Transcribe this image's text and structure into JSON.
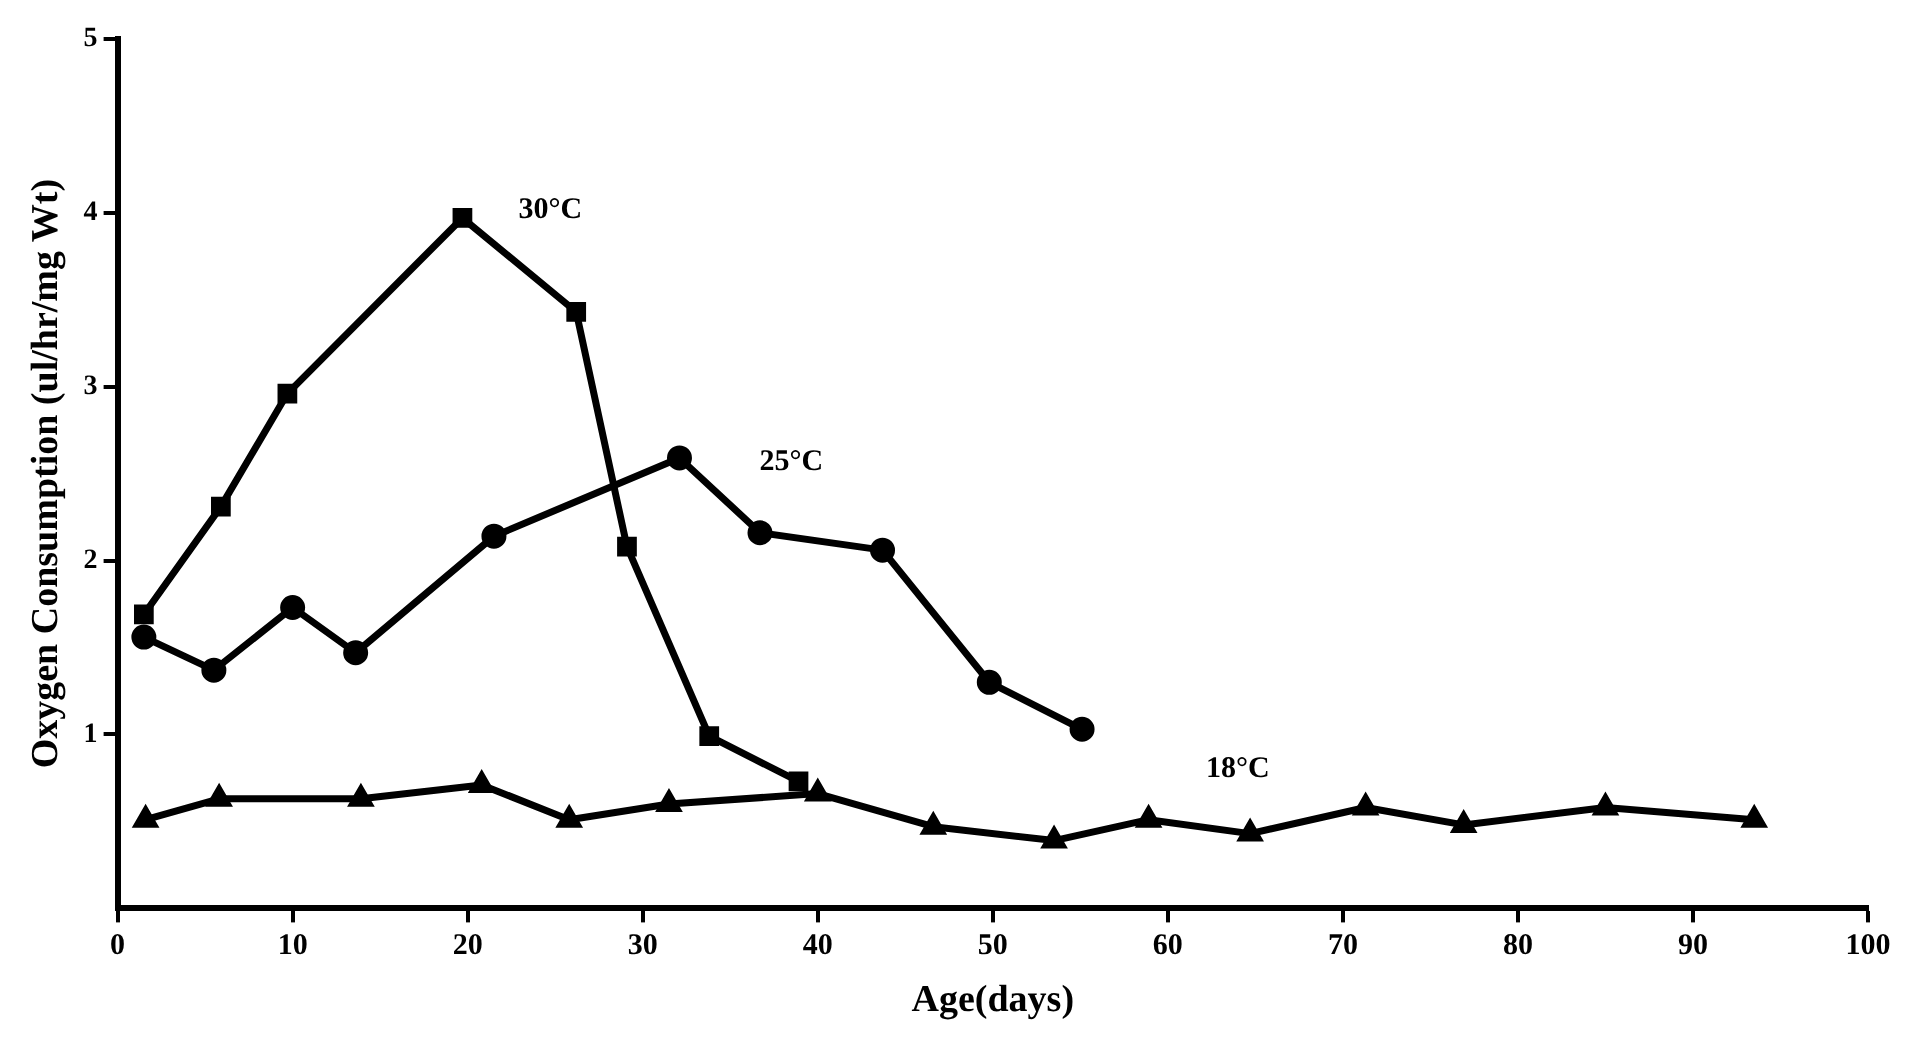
{
  "chart_data": {
    "type": "line",
    "xlabel": "Age(days)",
    "ylabel": "Oxygen Consumption (ul/hr/mg Wt)",
    "xlim": [
      0,
      100
    ],
    "xticks": [
      0,
      10,
      20,
      30,
      40,
      50,
      60,
      70,
      80,
      90,
      100
    ],
    "ylim": [
      0,
      5
    ],
    "yticks": [
      1,
      2,
      3,
      4,
      5
    ],
    "grid": false,
    "legend": false,
    "line_style": "solid",
    "series": [
      {
        "name": "30°C",
        "color": "#000000",
        "marker": "square",
        "x": [
          1.5,
          5.9,
          9.7,
          19.7,
          26.2,
          29.1,
          33.8,
          38.9
        ],
        "values": [
          1.69,
          2.31,
          2.96,
          3.97,
          3.43,
          2.08,
          0.99,
          0.73
        ]
      },
      {
        "name": "25°C",
        "color": "#000000",
        "marker": "circle",
        "x": [
          1.5,
          5.5,
          10.0,
          13.6,
          21.5,
          32.1,
          36.7,
          43.7,
          49.8,
          55.1
        ],
        "values": [
          1.56,
          1.37,
          1.73,
          1.47,
          2.14,
          2.59,
          2.16,
          2.06,
          1.3,
          1.03
        ]
      },
      {
        "name": "18°C",
        "color": "#000000",
        "marker": "triangle",
        "x": [
          1.6,
          5.8,
          13.9,
          20.8,
          25.8,
          31.5,
          40.0,
          46.6,
          53.5,
          58.9,
          64.7,
          71.3,
          76.9,
          85.0,
          93.5
        ],
        "values": [
          0.51,
          0.63,
          0.63,
          0.71,
          0.51,
          0.6,
          0.66,
          0.47,
          0.39,
          0.51,
          0.43,
          0.58,
          0.48,
          0.58,
          0.51
        ]
      }
    ]
  }
}
